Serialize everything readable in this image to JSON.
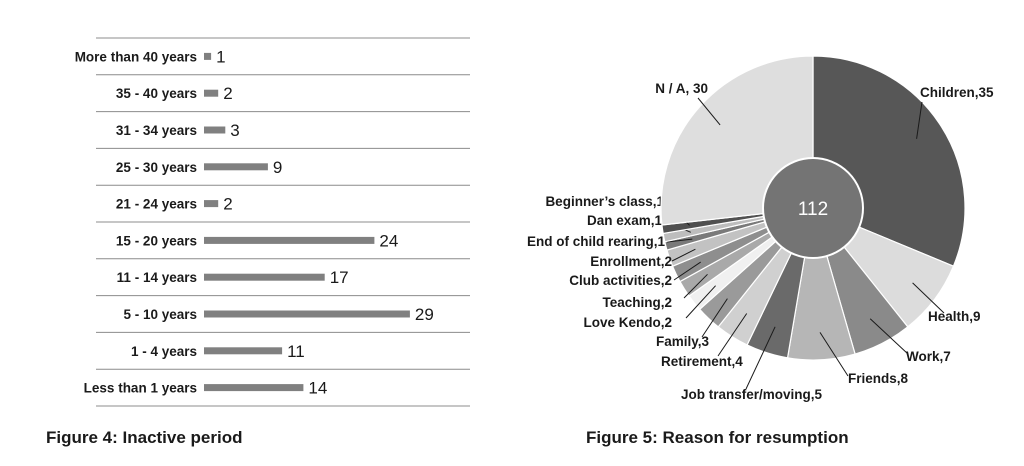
{
  "figures": [
    {
      "caption": "Figure 4: Inactive period"
    },
    {
      "caption": "Figure 5: Reason for resumption"
    }
  ],
  "chart_data": [
    {
      "type": "bar",
      "orientation": "horizontal",
      "categories": [
        "More than 40 years",
        "35 - 40 years",
        "31 - 34 years",
        "25 - 30 years",
        "21 - 24 years",
        "15 - 20 years",
        "11 - 14 years",
        "5 - 10 years",
        "1 - 4 years",
        "Less than 1 years"
      ],
      "values": [
        1,
        2,
        3,
        9,
        2,
        24,
        17,
        29,
        11,
        14
      ],
      "data_labels": [
        "1",
        "2",
        "3",
        "9",
        "2",
        "24",
        "17",
        "29",
        "11",
        "14"
      ],
      "bar_color": "#808080",
      "grid": true,
      "legend": "none"
    },
    {
      "type": "pie",
      "style": "donut",
      "center_label": "112",
      "legend": "none",
      "slices": [
        {
          "label": "Children,35",
          "value": 35,
          "color": "#575757"
        },
        {
          "label": "Health,9",
          "value": 9,
          "color": "#dcdcdc"
        },
        {
          "label": "Work,7",
          "value": 7,
          "color": "#8a8a8a"
        },
        {
          "label": "Friends,8",
          "value": 8,
          "color": "#b6b6b6"
        },
        {
          "label": "Job transfer/moving,5",
          "value": 5,
          "color": "#6a6a6a"
        },
        {
          "label": "Retirement,4",
          "value": 4,
          "color": "#d0d0d0"
        },
        {
          "label": "Family,3",
          "value": 3,
          "color": "#9a9a9a"
        },
        {
          "label": "Love Kendo,2",
          "value": 2,
          "color": "#f0f0f0"
        },
        {
          "label": "Teaching,2",
          "value": 2,
          "color": "#a9a9a9"
        },
        {
          "label": "Club activities,2",
          "value": 2,
          "color": "#8e8e8e"
        },
        {
          "label": "Enrollment,2",
          "value": 2,
          "color": "#c2c2c2"
        },
        {
          "label": "End of child rearing,1",
          "value": 1,
          "color": "#7a7a7a"
        },
        {
          "label": "Dan exam,1",
          "value": 1,
          "color": "#bdbdbd"
        },
        {
          "label": "Beginner’s class,1",
          "value": 1,
          "color": "#505050"
        },
        {
          "label": "N / A, 30",
          "value": 30,
          "color": "#dedede"
        }
      ]
    }
  ]
}
